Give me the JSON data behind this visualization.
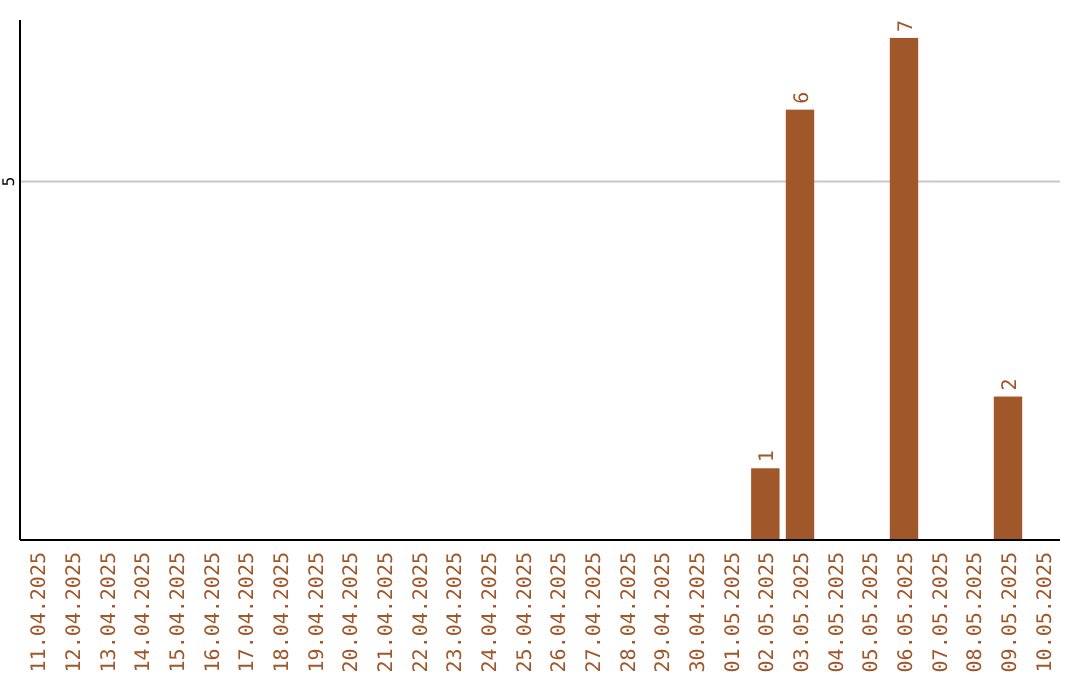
{
  "chart_data": {
    "type": "bar",
    "categories": [
      "11.04.2025",
      "12.04.2025",
      "13.04.2025",
      "14.04.2025",
      "15.04.2025",
      "16.04.2025",
      "17.04.2025",
      "18.04.2025",
      "19.04.2025",
      "20.04.2025",
      "21.04.2025",
      "22.04.2025",
      "23.04.2025",
      "24.04.2025",
      "25.04.2025",
      "26.04.2025",
      "27.04.2025",
      "28.04.2025",
      "29.04.2025",
      "30.04.2025",
      "01.05.2025",
      "02.05.2025",
      "03.05.2025",
      "04.05.2025",
      "05.05.2025",
      "06.05.2025",
      "07.05.2025",
      "08.05.2025",
      "09.05.2025",
      "10.05.2025"
    ],
    "values": [
      null,
      null,
      null,
      null,
      null,
      null,
      null,
      null,
      null,
      null,
      null,
      null,
      null,
      null,
      null,
      null,
      null,
      null,
      null,
      null,
      null,
      1,
      6,
      null,
      null,
      7,
      null,
      null,
      2,
      null
    ],
    "color": "#a0572a",
    "ylim": [
      0,
      7.25
    ],
    "yticks": [
      5
    ],
    "grid": "y",
    "data_labels": true
  }
}
